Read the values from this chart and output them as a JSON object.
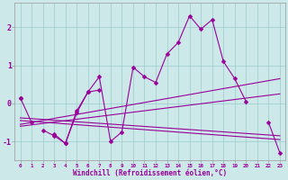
{
  "xlabel": "Windchill (Refroidissement éolien,°C)",
  "x": [
    0,
    1,
    2,
    3,
    4,
    5,
    6,
    7,
    8,
    9,
    10,
    11,
    12,
    13,
    14,
    15,
    16,
    17,
    18,
    19,
    20,
    21,
    22,
    23
  ],
  "y_main": [
    0.15,
    -0.5,
    null,
    -0.8,
    -1.05,
    -0.2,
    0.3,
    0.7,
    -1.0,
    -0.75,
    0.95,
    0.7,
    0.55,
    1.3,
    1.6,
    2.3,
    1.95,
    2.2,
    1.1,
    0.65,
    0.05,
    null,
    -0.5,
    -1.3
  ],
  "y_short": [
    0.15,
    null,
    -0.7,
    -0.85,
    -1.05,
    -0.25,
    0.3,
    0.35,
    null,
    null,
    null,
    null,
    null,
    null,
    null,
    null,
    null,
    null,
    null,
    null,
    null,
    null,
    null,
    null
  ],
  "reg_lines": [
    [
      0,
      -0.55,
      23,
      0.65
    ],
    [
      0,
      -0.6,
      23,
      0.25
    ],
    [
      0,
      -0.38,
      23,
      -0.85
    ],
    [
      0,
      -0.45,
      23,
      -0.95
    ]
  ],
  "line_color": "#990099",
  "marker": "D",
  "marker_size": 2.5,
  "bg_color": "#cce8e8",
  "grid_color": "#99cccc",
  "tick_color": "#990099",
  "label_color": "#990099",
  "xlim": [
    -0.5,
    23.5
  ],
  "ylim": [
    -1.5,
    2.65
  ],
  "yticks": [
    -1,
    0,
    1,
    2
  ],
  "xticks": [
    0,
    1,
    2,
    3,
    4,
    5,
    6,
    7,
    8,
    9,
    10,
    11,
    12,
    13,
    14,
    15,
    16,
    17,
    18,
    19,
    20,
    21,
    22,
    23
  ]
}
